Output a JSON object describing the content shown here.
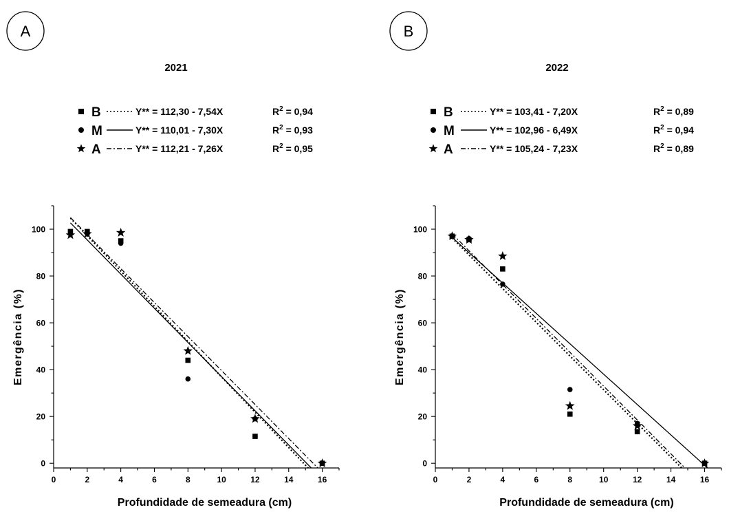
{
  "chart_data": [
    {
      "panel_label": "A",
      "type": "scatter",
      "title": "2021",
      "xlabel": "Profundidade de semeadura (cm)",
      "ylabel": "Emergência (%)",
      "xlim": [
        0,
        17
      ],
      "ylim": [
        -2,
        110
      ],
      "xticks": [
        "0",
        "2",
        "4",
        "6",
        "8",
        "10",
        "12",
        "14",
        "16"
      ],
      "yticks": [
        "0",
        "20",
        "40",
        "60",
        "80",
        "100"
      ],
      "legend": [
        {
          "marker": "square",
          "name": "B",
          "equation": "Y** = 112,30 - 7,54X",
          "r2_label": "R",
          "r2_value": " = 0,94",
          "line": "dotted"
        },
        {
          "marker": "circle",
          "name": "M",
          "equation": "Y** = 110,01 - 7,30X",
          "r2_label": "R",
          "r2_value": " = 0,93",
          "line": "solid"
        },
        {
          "marker": "star",
          "name": "A",
          "equation": "Y** = 112,21 - 7,26X",
          "r2_label": "R",
          "r2_value": " = 0,95",
          "line": "dashdot"
        }
      ],
      "series": [
        {
          "name": "B",
          "marker": "square",
          "x": [
            1,
            2,
            4,
            8,
            12,
            16
          ],
          "y": [
            99,
            99,
            95,
            44,
            11.5,
            0
          ],
          "fit": {
            "intercept": 112.3,
            "slope": -7.54
          },
          "line": "dotted"
        },
        {
          "name": "M",
          "marker": "circle",
          "x": [
            1,
            2,
            4,
            8,
            12,
            16
          ],
          "y": [
            98,
            98,
            94,
            36,
            19,
            0
          ],
          "fit": {
            "intercept": 110.01,
            "slope": -7.3
          },
          "line": "solid"
        },
        {
          "name": "A",
          "marker": "star",
          "x": [
            1,
            2,
            4,
            8,
            12,
            16
          ],
          "y": [
            97.5,
            98,
            98.5,
            48,
            19,
            0
          ],
          "fit": {
            "intercept": 112.21,
            "slope": -7.26
          },
          "line": "dashdot"
        }
      ]
    },
    {
      "panel_label": "B",
      "type": "scatter",
      "title": "2022",
      "xlabel": "Profundidade de semeadura (cm)",
      "ylabel": "Emergência (%)",
      "xlim": [
        0,
        17
      ],
      "ylim": [
        -2,
        110
      ],
      "xticks": [
        "0",
        "2",
        "4",
        "6",
        "8",
        "10",
        "12",
        "14",
        "16"
      ],
      "yticks": [
        "0",
        "20",
        "40",
        "60",
        "80",
        "100"
      ],
      "legend": [
        {
          "marker": "square",
          "name": "B",
          "equation": "Y** = 103,41 - 7,20X",
          "r2_label": "R",
          "r2_value": " = 0,89",
          "line": "dotted"
        },
        {
          "marker": "circle",
          "name": "M",
          "equation": "Y** = 102,96 - 6,49X",
          "r2_label": "R",
          "r2_value": " = 0,94",
          "line": "solid"
        },
        {
          "marker": "star",
          "name": "A",
          "equation": "Y** = 105,24 - 7,23X",
          "r2_label": "R",
          "r2_value": " = 0,89",
          "line": "dashdot"
        }
      ],
      "series": [
        {
          "name": "B",
          "marker": "square",
          "x": [
            1,
            2,
            4,
            8,
            12,
            16
          ],
          "y": [
            97,
            95.5,
            83,
            21,
            13.5,
            0
          ],
          "fit": {
            "intercept": 103.41,
            "slope": -7.2
          },
          "line": "dotted"
        },
        {
          "name": "M",
          "marker": "circle",
          "x": [
            1,
            2,
            4,
            8,
            12,
            16
          ],
          "y": [
            97,
            96,
            76.5,
            31.5,
            17,
            0
          ],
          "fit": {
            "intercept": 102.96,
            "slope": -6.49
          },
          "line": "solid"
        },
        {
          "name": "A",
          "marker": "star",
          "x": [
            1,
            2,
            4,
            8,
            12,
            16
          ],
          "y": [
            97,
            95.5,
            88.5,
            24.5,
            16,
            0
          ],
          "fit": {
            "intercept": 105.24,
            "slope": -7.23
          },
          "line": "dashdot"
        }
      ]
    }
  ]
}
